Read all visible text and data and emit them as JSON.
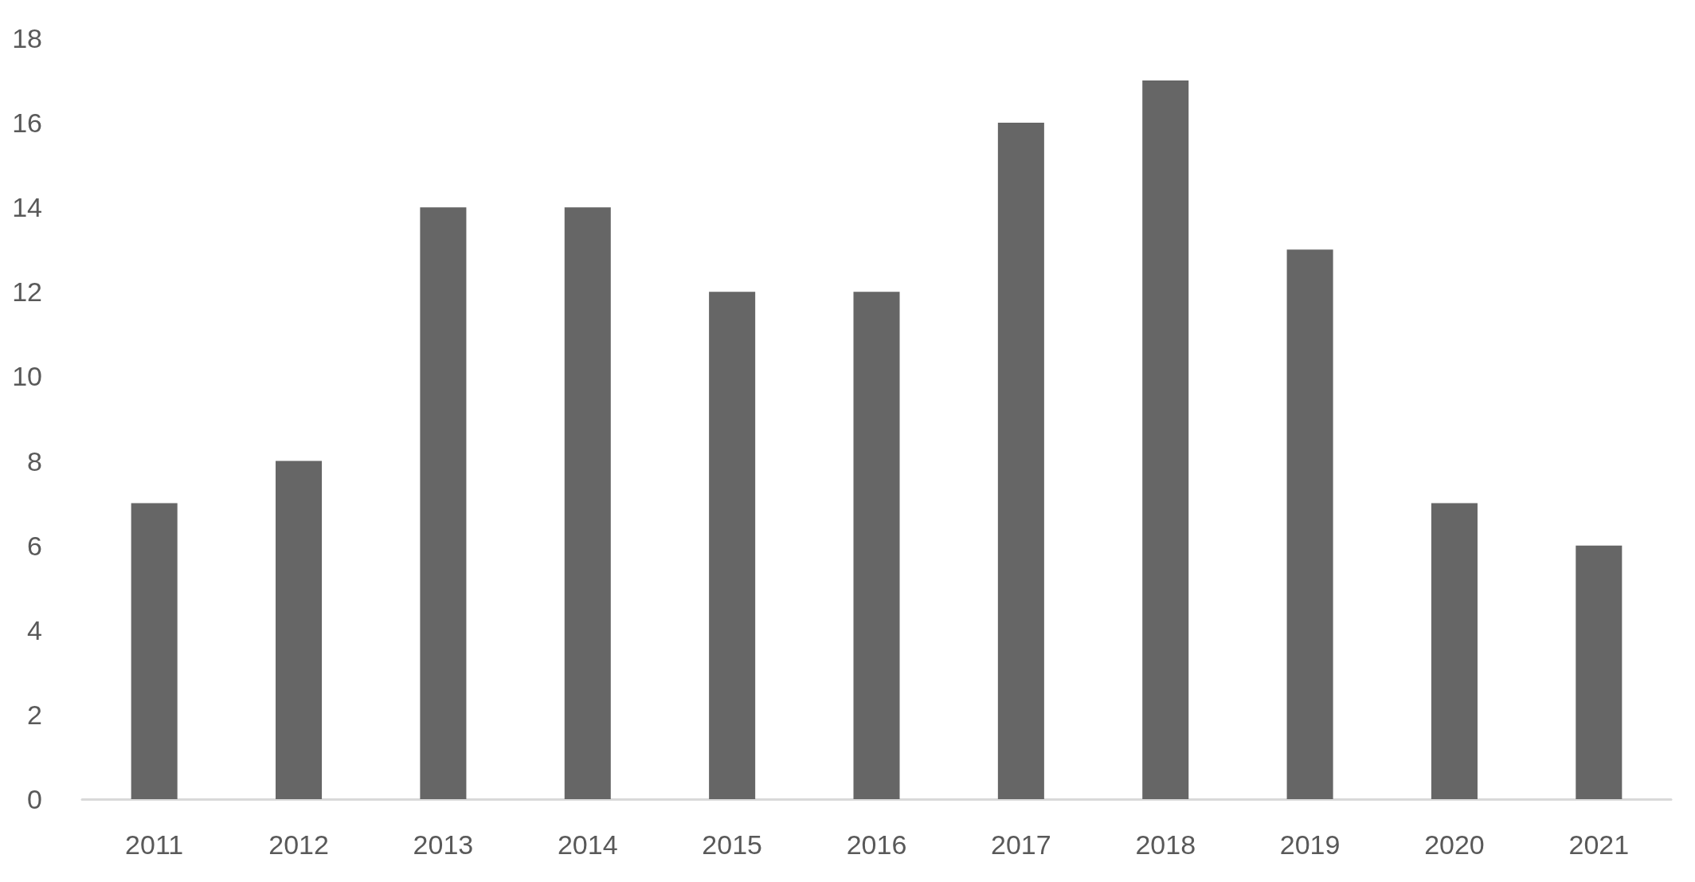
{
  "chart_data": {
    "type": "bar",
    "categories": [
      "2011",
      "2012",
      "2013",
      "2014",
      "2015",
      "2016",
      "2017",
      "2018",
      "2019",
      "2020",
      "2021"
    ],
    "values": [
      7,
      8,
      14,
      14,
      12,
      12,
      16,
      17,
      13,
      7,
      6
    ],
    "color": "#666666",
    "ylim": [
      0,
      18
    ],
    "yticks": [
      0,
      2,
      4,
      6,
      8,
      10,
      12,
      14,
      16,
      18
    ],
    "grid": false
  }
}
